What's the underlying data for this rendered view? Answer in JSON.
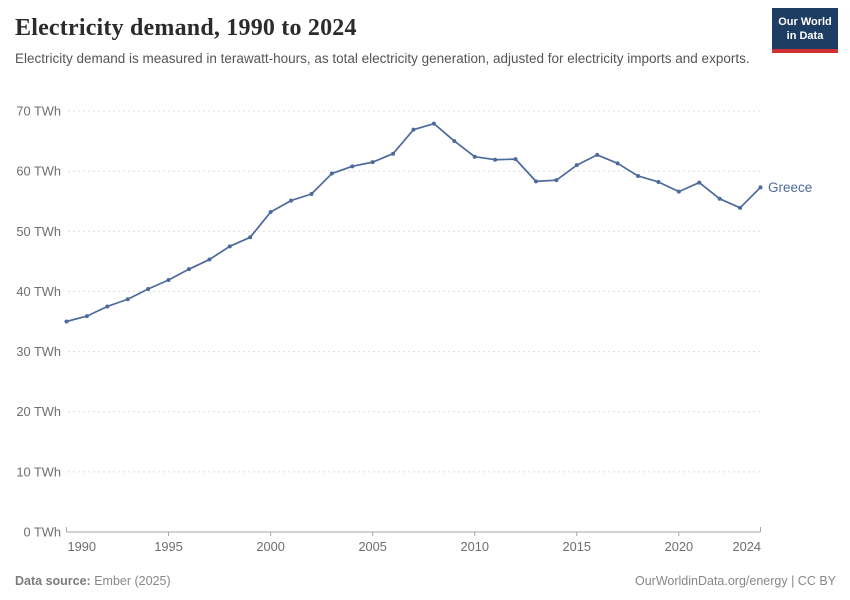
{
  "header": {
    "title": "Electricity demand, 1990 to 2024",
    "subtitle": "Electricity demand is measured in terawatt-hours, as total electricity generation, adjusted for electricity imports and exports.",
    "logo": {
      "line1": "Our World",
      "line2": "in Data"
    }
  },
  "chart_data": {
    "type": "line",
    "title": "Electricity demand, 1990 to 2024",
    "unit": "TWh",
    "x": [
      1990,
      1991,
      1992,
      1993,
      1994,
      1995,
      1996,
      1997,
      1998,
      1999,
      2000,
      2001,
      2002,
      2003,
      2004,
      2005,
      2006,
      2007,
      2008,
      2009,
      2010,
      2011,
      2012,
      2013,
      2014,
      2015,
      2016,
      2017,
      2018,
      2019,
      2020,
      2021,
      2022,
      2023,
      2024
    ],
    "series": [
      {
        "name": "Greece",
        "color": "#4c6a9c",
        "values": [
          35.0,
          35.9,
          37.5,
          38.7,
          40.4,
          41.9,
          43.7,
          45.3,
          47.5,
          49.0,
          53.2,
          55.1,
          56.2,
          59.6,
          60.8,
          61.5,
          62.9,
          66.9,
          67.9,
          65.0,
          62.4,
          61.9,
          62.0,
          58.3,
          58.5,
          61.0,
          62.7,
          61.3,
          59.2,
          58.2,
          56.6,
          58.1,
          55.4,
          53.9,
          57.3
        ]
      }
    ],
    "ylim": [
      0,
      70
    ],
    "yticks": [
      0,
      10,
      20,
      30,
      40,
      50,
      60,
      70
    ],
    "xticks": [
      1990,
      1995,
      2000,
      2005,
      2010,
      2015,
      2020,
      2024
    ],
    "grid": "horizontal-dashed",
    "legend": "line-end-label",
    "ylabel": "",
    "xlabel": ""
  },
  "footer": {
    "source_bold": "Data source:",
    "source_text": "Ember (2025)",
    "right_text": "OurWorldinData.org/energy | CC BY"
  },
  "colors": {
    "line": "#4c6a9c",
    "logo_bg": "#1d3d63",
    "logo_stripe": "#cf3235",
    "grid": "#dcdcdc",
    "axis": "#a6a6a6",
    "tick_text": "#6e6e6e"
  }
}
